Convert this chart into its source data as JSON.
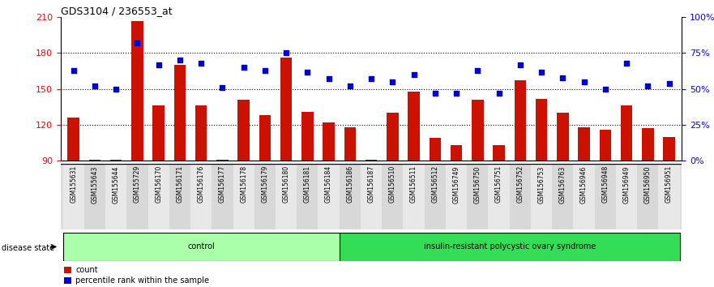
{
  "title": "GDS3104 / 236553_at",
  "samples": [
    "GSM155631",
    "GSM155643",
    "GSM155644",
    "GSM155729",
    "GSM156170",
    "GSM156171",
    "GSM156176",
    "GSM156177",
    "GSM156178",
    "GSM156179",
    "GSM156180",
    "GSM156181",
    "GSM156184",
    "GSM156186",
    "GSM156187",
    "GSM156510",
    "GSM156511",
    "GSM156512",
    "GSM156749",
    "GSM156750",
    "GSM156751",
    "GSM156752",
    "GSM156753",
    "GSM156763",
    "GSM156946",
    "GSM156948",
    "GSM156949",
    "GSM156950",
    "GSM156951"
  ],
  "bar_values": [
    126,
    91,
    91,
    207,
    136,
    170,
    136,
    91,
    141,
    128,
    176,
    131,
    122,
    118,
    91,
    130,
    148,
    109,
    103,
    141,
    103,
    157,
    142,
    130,
    118,
    116,
    136,
    117,
    110
  ],
  "dot_values": [
    63,
    52,
    50,
    82,
    67,
    70,
    68,
    51,
    65,
    63,
    75,
    62,
    57,
    52,
    57,
    55,
    60,
    47,
    47,
    63,
    47,
    67,
    62,
    58,
    55,
    50,
    68,
    52,
    54
  ],
  "groups": [
    {
      "label": "control",
      "start": 0,
      "end": 13,
      "color": "#AAFFAA"
    },
    {
      "label": "insulin-resistant polycystic ovary syndrome",
      "start": 13,
      "end": 29,
      "color": "#33DD55"
    }
  ],
  "bar_color": "#CC1100",
  "dot_color": "#0000CC",
  "bar_bottom": 90,
  "left_ylim": [
    90,
    210
  ],
  "right_ylim": [
    0,
    100
  ],
  "left_yticks": [
    90,
    120,
    150,
    180,
    210
  ],
  "right_yticks": [
    0,
    25,
    50,
    75,
    100
  ],
  "right_yticklabels": [
    "0%",
    "25%",
    "50%",
    "75%",
    "100%"
  ],
  "grid_lines": [
    120,
    150,
    180
  ],
  "background_color": "#FFFFFF"
}
